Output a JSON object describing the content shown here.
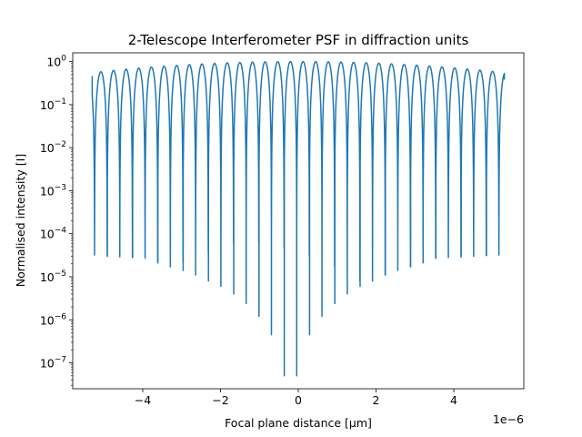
{
  "chart_data": {
    "type": "line",
    "title": "2-Telescope Interferometer PSF in diffraction units",
    "xlabel": "Focal plane distance [μm]",
    "ylabel": "Normalised intensity [I]",
    "x_offset_text": "1e−6",
    "xscale": "linear",
    "yscale": "log",
    "xlim": [
      -5.8e-06,
      5.8e-06
    ],
    "ylim": [
      2.5e-08,
      1.6
    ],
    "grid": false,
    "legend": "none",
    "x_ticks": [
      {
        "value": -4e-06,
        "label": "−4"
      },
      {
        "value": -2e-06,
        "label": "−2"
      },
      {
        "value": 0,
        "label": "0"
      },
      {
        "value": 2e-06,
        "label": "2"
      },
      {
        "value": 4e-06,
        "label": "4"
      }
    ],
    "y_ticks": [
      {
        "exp": 0
      },
      {
        "exp": -1
      },
      {
        "exp": -2
      },
      {
        "exp": -3
      },
      {
        "exp": -4
      },
      {
        "exp": -5
      },
      {
        "exp": -6
      },
      {
        "exp": -7
      }
    ],
    "series": [
      {
        "color": "#1f77b4",
        "x_range": [
          -5.3e-06,
          5.3e-06
        ],
        "fringe_period": 3.25e-07,
        "first_null": -5.24e-06,
        "envelope_half_width": 6.9e-06,
        "end_values": [
          0.45,
          0.38
        ],
        "minima": [
          {
            "x": -5.24e-06,
            "y": 3.2e-05
          },
          {
            "x": -4.91e-06,
            "y": 3e-05
          },
          {
            "x": -4.59e-06,
            "y": 2.9e-05
          },
          {
            "x": -4.26e-06,
            "y": 2.8e-05
          },
          {
            "x": -3.94e-06,
            "y": 2.7e-05
          },
          {
            "x": -3.61e-06,
            "y": 2.1e-05
          },
          {
            "x": -3.29e-06,
            "y": 1.7e-05
          },
          {
            "x": -2.96e-06,
            "y": 1.4e-05
          },
          {
            "x": -2.64e-06,
            "y": 1.1e-05
          },
          {
            "x": -2.31e-06,
            "y": 8e-06
          },
          {
            "x": -1.99e-06,
            "y": 6e-06
          },
          {
            "x": -1.66e-06,
            "y": 4e-06
          },
          {
            "x": -1.34e-06,
            "y": 2.4e-06
          },
          {
            "x": -1.01e-06,
            "y": 1.2e-06
          },
          {
            "x": -6.9e-07,
            "y": 4.5e-07
          },
          {
            "x": -3.6e-07,
            "y": 5e-08
          },
          {
            "x": -4e-08,
            "y": 5e-08
          },
          {
            "x": 2.9e-07,
            "y": 4.5e-07
          },
          {
            "x": 6.1e-07,
            "y": 1.2e-06
          },
          {
            "x": 9.4e-07,
            "y": 2.4e-06
          },
          {
            "x": 1.26e-06,
            "y": 4e-06
          },
          {
            "x": 1.59e-06,
            "y": 6e-06
          },
          {
            "x": 1.91e-06,
            "y": 8e-06
          },
          {
            "x": 2.24e-06,
            "y": 1.1e-05
          },
          {
            "x": 2.56e-06,
            "y": 1.4e-05
          },
          {
            "x": 2.89e-06,
            "y": 1.7e-05
          },
          {
            "x": 3.21e-06,
            "y": 2.1e-05
          },
          {
            "x": 3.54e-06,
            "y": 2.7e-05
          },
          {
            "x": 3.86e-06,
            "y": 2.8e-05
          },
          {
            "x": 4.19e-06,
            "y": 2.9e-05
          },
          {
            "x": 4.51e-06,
            "y": 3e-05
          },
          {
            "x": 4.84e-06,
            "y": 3.1e-05
          },
          {
            "x": 5.16e-06,
            "y": 3.2e-05
          }
        ]
      }
    ]
  }
}
